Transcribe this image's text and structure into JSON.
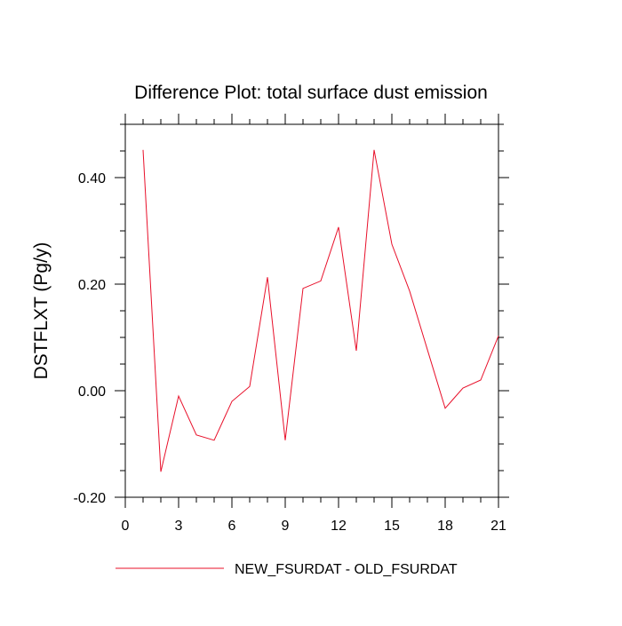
{
  "chart_data": {
    "type": "line",
    "title": "Difference Plot: total surface dust emission",
    "xlabel": "",
    "ylabel": "DSTFLXT  (Pg/y)",
    "xlim": [
      0,
      21
    ],
    "ylim": [
      -0.2,
      0.5
    ],
    "x_ticks": [
      0,
      3,
      6,
      9,
      12,
      15,
      18,
      21
    ],
    "x_tick_labels": [
      "0",
      "3",
      "6",
      "9",
      "12",
      "15",
      "18",
      "21"
    ],
    "y_ticks": [
      -0.2,
      0.0,
      0.2,
      0.4
    ],
    "y_tick_labels": [
      "-0.20",
      "0.00",
      "0.20",
      "0.40"
    ],
    "grid": false,
    "legend_position": "bottom",
    "series": [
      {
        "name": "NEW_FSURDAT - OLD_FSURDAT",
        "color": "#e8102a",
        "x": [
          1,
          2,
          3,
          4,
          5,
          6,
          7,
          8,
          9,
          10,
          11,
          12,
          13,
          14,
          15,
          16,
          17,
          18,
          19,
          20,
          21
        ],
        "values": [
          0.452,
          -0.152,
          -0.01,
          -0.083,
          -0.093,
          -0.02,
          0.008,
          0.213,
          -0.093,
          0.192,
          0.206,
          0.307,
          0.075,
          0.452,
          0.275,
          0.187,
          0.077,
          -0.033,
          0.005,
          0.02,
          0.103
        ]
      }
    ]
  }
}
